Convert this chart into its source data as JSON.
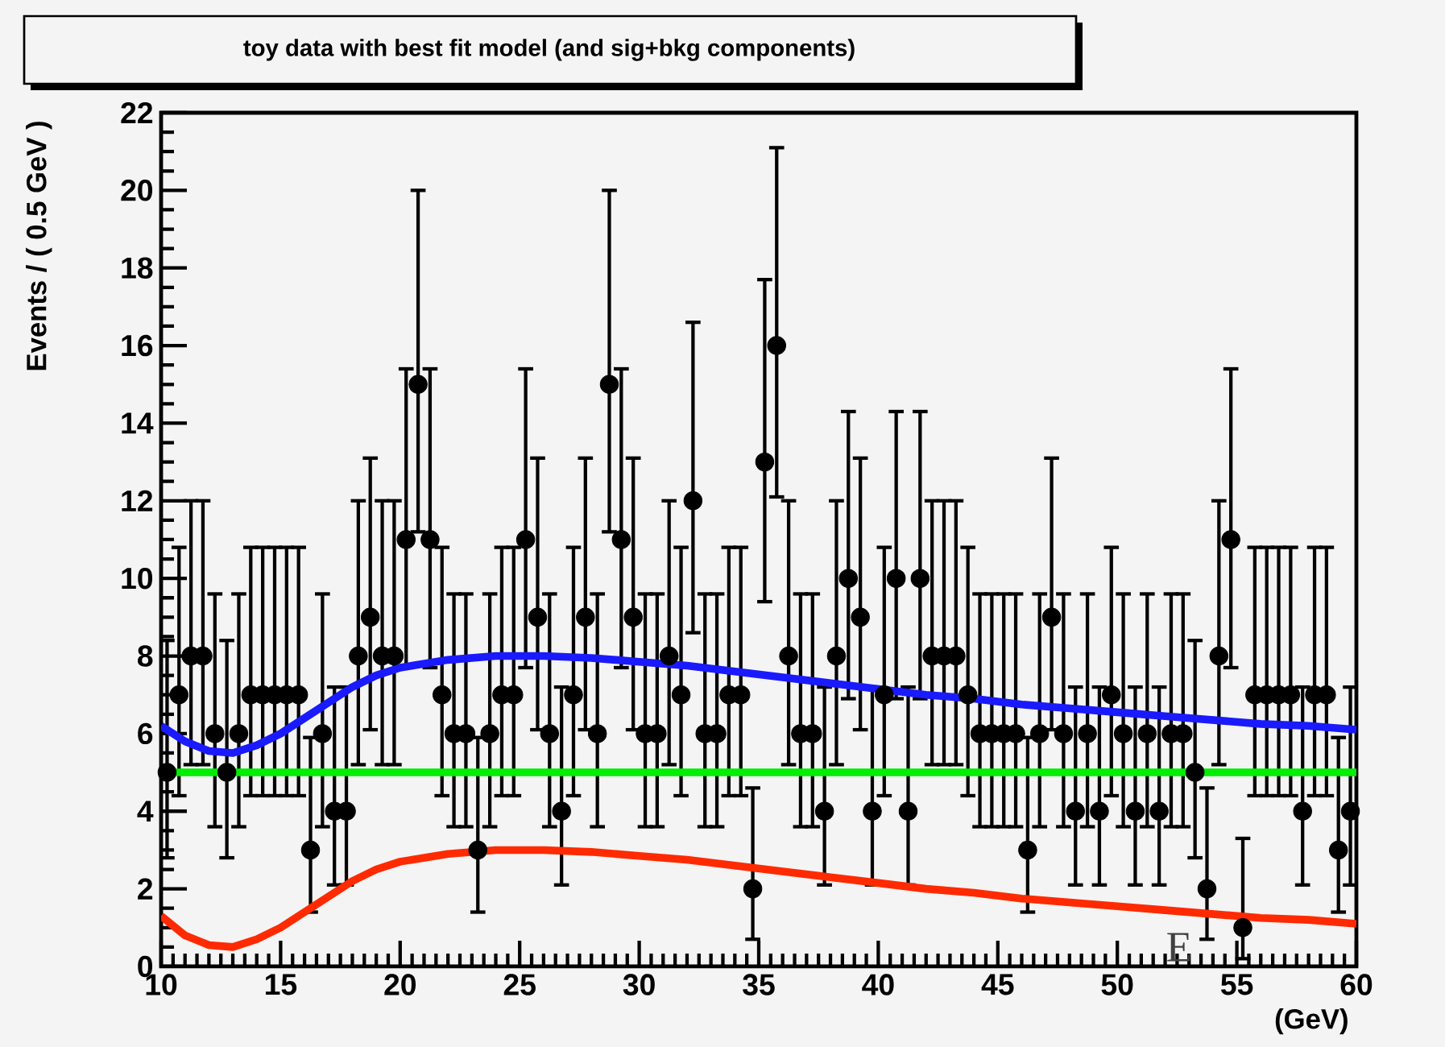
{
  "chart_data": {
    "type": "scatter",
    "title": "toy data with best fit model (and sig+bkg components)",
    "xlabel": "(GeV)",
    "ylabel": "Events / ( 0.5 GeV )",
    "xlim": [
      10,
      60
    ],
    "ylim": [
      0,
      22
    ],
    "xticks": [
      10,
      15,
      20,
      25,
      30,
      35,
      40,
      45,
      50,
      55,
      60
    ],
    "yticks": [
      0,
      2,
      4,
      6,
      8,
      10,
      12,
      14,
      16,
      18,
      20,
      22
    ],
    "annotations": [
      "E"
    ],
    "series": [
      {
        "type": "scatter",
        "color": "#000000",
        "marker": "circle",
        "x": [
          10.25,
          10.75,
          11.25,
          11.75,
          12.25,
          12.75,
          13.25,
          13.75,
          14.25,
          14.75,
          15.25,
          15.75,
          16.25,
          16.75,
          17.25,
          17.75,
          18.25,
          18.75,
          19.25,
          19.75,
          20.25,
          20.75,
          21.25,
          21.75,
          22.25,
          22.75,
          23.25,
          23.75,
          24.25,
          24.75,
          25.25,
          25.75,
          26.25,
          26.75,
          27.25,
          27.75,
          28.25,
          28.75,
          29.25,
          29.75,
          30.25,
          30.75,
          31.25,
          31.75,
          32.25,
          32.75,
          33.25,
          33.75,
          34.25,
          34.75,
          35.25,
          35.75,
          36.25,
          36.75,
          37.25,
          37.75,
          38.25,
          38.75,
          39.25,
          39.75,
          40.25,
          40.75,
          41.25,
          41.75,
          42.25,
          42.75,
          43.25,
          43.75,
          44.25,
          44.75,
          45.25,
          45.75,
          46.25,
          46.75,
          47.25,
          47.75,
          48.25,
          48.75,
          49.25,
          49.75,
          50.25,
          50.75,
          51.25,
          51.75,
          52.25,
          52.75,
          53.25,
          53.75,
          54.25,
          54.75,
          55.25,
          55.75,
          56.25,
          56.75,
          57.25,
          57.75,
          58.25,
          58.75,
          59.25,
          59.75
        ],
        "values": [
          5,
          7,
          8,
          8,
          6,
          5,
          6,
          7,
          7,
          7,
          7,
          7,
          3,
          6,
          4,
          4,
          8,
          9,
          8,
          8,
          11,
          15,
          11,
          7,
          6,
          6,
          3,
          6,
          7,
          7,
          11,
          9,
          6,
          4,
          7,
          9,
          6,
          15,
          11,
          9,
          6,
          6,
          8,
          7,
          12,
          6,
          6,
          7,
          7,
          2,
          13,
          16,
          8,
          6,
          6,
          4,
          8,
          10,
          9,
          4,
          7,
          10,
          4,
          10,
          8,
          8,
          8,
          7,
          6,
          6,
          6,
          6,
          3,
          6,
          9,
          6,
          4,
          6,
          4,
          7,
          6,
          4,
          6,
          4,
          6,
          6,
          5,
          2,
          8,
          11,
          1,
          7,
          7,
          7,
          7,
          4,
          7,
          7,
          3,
          4
        ],
        "errors": [
          [
            2.8,
            8.4
          ],
          [
            4.4,
            10.8
          ],
          [
            5.2,
            12.0
          ],
          [
            5.2,
            12.0
          ],
          [
            3.6,
            9.6
          ],
          [
            2.8,
            8.4
          ],
          [
            3.6,
            9.6
          ],
          [
            4.4,
            10.8
          ],
          [
            4.4,
            10.8
          ],
          [
            4.4,
            10.8
          ],
          [
            4.4,
            10.8
          ],
          [
            4.4,
            10.8
          ],
          [
            1.4,
            5.9
          ],
          [
            3.6,
            9.6
          ],
          [
            2.1,
            7.2
          ],
          [
            2.1,
            7.2
          ],
          [
            5.2,
            12.0
          ],
          [
            6.1,
            13.1
          ],
          [
            5.2,
            12.0
          ],
          [
            5.2,
            12.0
          ],
          [
            7.7,
            15.4
          ],
          [
            11.2,
            20.0
          ],
          [
            7.7,
            15.4
          ],
          [
            4.4,
            10.8
          ],
          [
            3.6,
            9.6
          ],
          [
            3.6,
            9.6
          ],
          [
            1.4,
            5.9
          ],
          [
            3.6,
            9.6
          ],
          [
            4.4,
            10.8
          ],
          [
            4.4,
            10.8
          ],
          [
            7.7,
            15.4
          ],
          [
            6.1,
            13.1
          ],
          [
            3.6,
            9.6
          ],
          [
            2.1,
            7.2
          ],
          [
            4.4,
            10.8
          ],
          [
            6.1,
            13.1
          ],
          [
            3.6,
            9.6
          ],
          [
            11.2,
            20.0
          ],
          [
            7.7,
            15.4
          ],
          [
            6.1,
            13.1
          ],
          [
            3.6,
            9.6
          ],
          [
            3.6,
            9.6
          ],
          [
            5.2,
            12.0
          ],
          [
            4.4,
            10.8
          ],
          [
            8.6,
            16.6
          ],
          [
            3.6,
            9.6
          ],
          [
            3.6,
            9.6
          ],
          [
            4.4,
            10.8
          ],
          [
            4.4,
            10.8
          ],
          [
            0.7,
            4.6
          ],
          [
            9.4,
            17.7
          ],
          [
            12.1,
            21.1
          ],
          [
            5.2,
            12.0
          ],
          [
            3.6,
            9.6
          ],
          [
            3.6,
            9.6
          ],
          [
            2.1,
            7.2
          ],
          [
            5.2,
            12.0
          ],
          [
            6.9,
            14.3
          ],
          [
            6.1,
            13.1
          ],
          [
            2.1,
            7.2
          ],
          [
            4.4,
            10.8
          ],
          [
            6.9,
            14.3
          ],
          [
            2.1,
            7.2
          ],
          [
            6.9,
            14.3
          ],
          [
            5.2,
            12.0
          ],
          [
            5.2,
            12.0
          ],
          [
            5.2,
            12.0
          ],
          [
            4.4,
            10.8
          ],
          [
            3.6,
            9.6
          ],
          [
            3.6,
            9.6
          ],
          [
            3.6,
            9.6
          ],
          [
            3.6,
            9.6
          ],
          [
            1.4,
            5.9
          ],
          [
            3.6,
            9.6
          ],
          [
            6.1,
            13.1
          ],
          [
            3.6,
            9.6
          ],
          [
            2.1,
            7.2
          ],
          [
            3.6,
            9.6
          ],
          [
            2.1,
            7.2
          ],
          [
            4.4,
            10.8
          ],
          [
            3.6,
            9.6
          ],
          [
            2.1,
            7.2
          ],
          [
            3.6,
            9.6
          ],
          [
            2.1,
            7.2
          ],
          [
            3.6,
            9.6
          ],
          [
            3.6,
            9.6
          ],
          [
            2.8,
            8.4
          ],
          [
            0.7,
            4.6
          ],
          [
            5.2,
            12.0
          ],
          [
            7.7,
            15.4
          ],
          [
            0.2,
            3.3
          ],
          [
            4.4,
            10.8
          ],
          [
            4.4,
            10.8
          ],
          [
            4.4,
            10.8
          ],
          [
            4.4,
            10.8
          ],
          [
            2.1,
            7.2
          ],
          [
            4.4,
            10.8
          ],
          [
            4.4,
            10.8
          ],
          [
            1.4,
            5.9
          ],
          [
            2.1,
            7.2
          ]
        ]
      },
      {
        "type": "line",
        "color": "#1a1aff",
        "marker": "none",
        "x": [
          10,
          11,
          12,
          13,
          14,
          15,
          16,
          17,
          18,
          19,
          20,
          22,
          24,
          26,
          28,
          30,
          32,
          34,
          36,
          38,
          40,
          42,
          44,
          46,
          48,
          50,
          52,
          54,
          56,
          58,
          60
        ],
        "values": [
          6.2,
          5.8,
          5.55,
          5.5,
          5.7,
          6.0,
          6.4,
          6.8,
          7.2,
          7.5,
          7.7,
          7.9,
          8.0,
          8.0,
          7.95,
          7.85,
          7.75,
          7.6,
          7.45,
          7.3,
          7.15,
          7.0,
          6.9,
          6.75,
          6.65,
          6.55,
          6.45,
          6.35,
          6.25,
          6.2,
          6.1
        ]
      },
      {
        "type": "line",
        "color": "#00ee00",
        "marker": "none",
        "x": [
          10,
          60
        ],
        "values": [
          5,
          5
        ]
      },
      {
        "type": "line",
        "color": "#ff2a00",
        "marker": "none",
        "x": [
          10,
          11,
          12,
          13,
          14,
          15,
          16,
          17,
          18,
          19,
          20,
          22,
          24,
          26,
          28,
          30,
          32,
          34,
          36,
          38,
          40,
          42,
          44,
          46,
          48,
          50,
          52,
          54,
          56,
          58,
          60
        ],
        "values": [
          1.3,
          0.8,
          0.55,
          0.5,
          0.7,
          1.0,
          1.4,
          1.8,
          2.2,
          2.5,
          2.7,
          2.9,
          3.0,
          3.0,
          2.95,
          2.85,
          2.75,
          2.6,
          2.45,
          2.3,
          2.15,
          2.0,
          1.9,
          1.75,
          1.65,
          1.55,
          1.45,
          1.35,
          1.25,
          1.2,
          1.1
        ]
      }
    ]
  }
}
